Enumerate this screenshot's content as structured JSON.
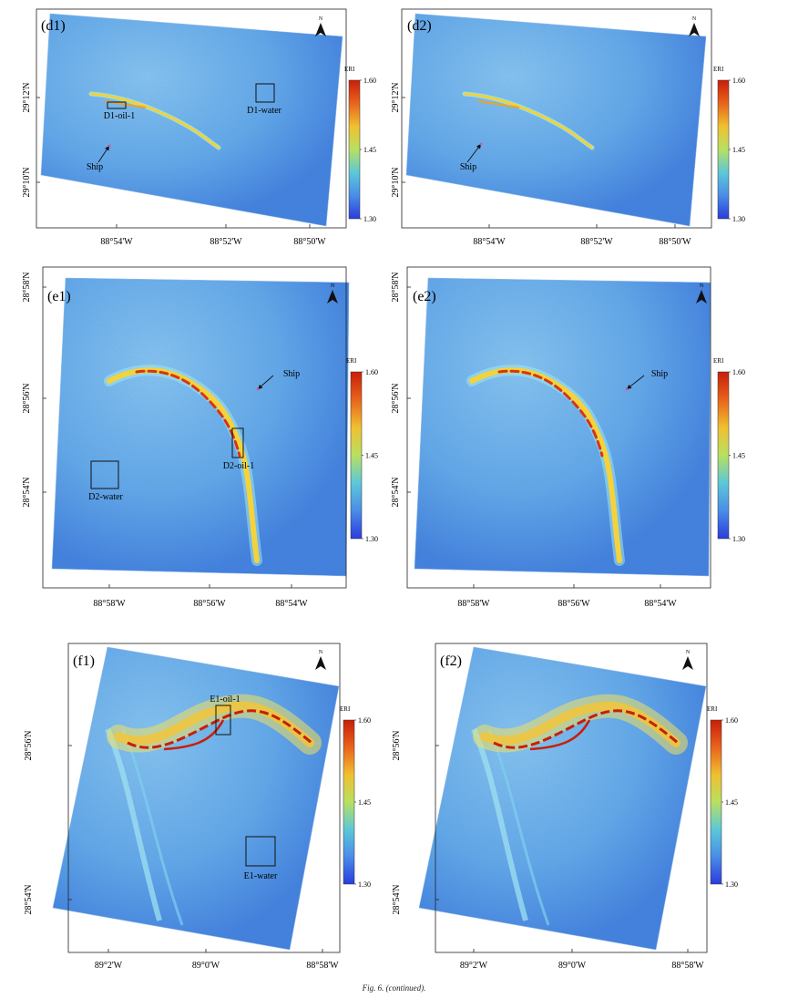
{
  "figure": {
    "caption": "Fig. 6. (continued).",
    "north_label": "N",
    "colorbar": {
      "title": "ERI",
      "ticks": [
        "1.60",
        "1.45",
        "1.30"
      ],
      "colors": [
        "#c81e0a",
        "#e8641c",
        "#f0c030",
        "#b8e060",
        "#5cc8d8",
        "#4a8ce8",
        "#2a3cdc"
      ]
    },
    "panels": [
      {
        "id": "d1",
        "label": "(d1)",
        "lat_ticks": [
          "29°12'N",
          "29°10'N"
        ],
        "lon_ticks": [
          "88°54'W",
          "88°52'W",
          "88°50'W"
        ],
        "annotations": [
          {
            "text": "D1-oil-1",
            "kind": "box"
          },
          {
            "text": "D1-water",
            "kind": "box"
          },
          {
            "text": "Ship",
            "kind": "arrow"
          }
        ]
      },
      {
        "id": "d2",
        "label": "(d2)",
        "lat_ticks": [
          "29°12'N",
          "29°10'N"
        ],
        "lon_ticks": [
          "88°54'W",
          "88°52'W",
          "88°50'W"
        ],
        "annotations": [
          {
            "text": "Ship",
            "kind": "arrow"
          }
        ]
      },
      {
        "id": "e1",
        "label": "(e1)",
        "lat_ticks": [
          "28°58'N",
          "28°56'N",
          "28°54'N"
        ],
        "lon_ticks": [
          "88°58'W",
          "88°56'W",
          "88°54'W"
        ],
        "annotations": [
          {
            "text": "Ship",
            "kind": "arrow"
          },
          {
            "text": "D2-oil-1",
            "kind": "box"
          },
          {
            "text": "D2-water",
            "kind": "box"
          }
        ]
      },
      {
        "id": "e2",
        "label": "(e2)",
        "lat_ticks": [
          "28°58'N",
          "28°56'N",
          "28°54'N"
        ],
        "lon_ticks": [
          "88°58'W",
          "88°56'W",
          "88°54'W"
        ],
        "annotations": [
          {
            "text": "Ship",
            "kind": "arrow"
          }
        ]
      },
      {
        "id": "f1",
        "label": "(f1)",
        "lat_ticks": [
          "28°56'N",
          "28°54'N"
        ],
        "lon_ticks": [
          "89°2'W",
          "89°0'W",
          "88°58'W"
        ],
        "annotations": [
          {
            "text": "E1-oil-1",
            "kind": "box"
          },
          {
            "text": "E1-water",
            "kind": "box"
          }
        ]
      },
      {
        "id": "f2",
        "label": "(f2)",
        "lat_ticks": [
          "28°56'N",
          "28°54'N"
        ],
        "lon_ticks": [
          "89°2'W",
          "89°0'W",
          "88°58'W"
        ],
        "annotations": []
      }
    ]
  }
}
